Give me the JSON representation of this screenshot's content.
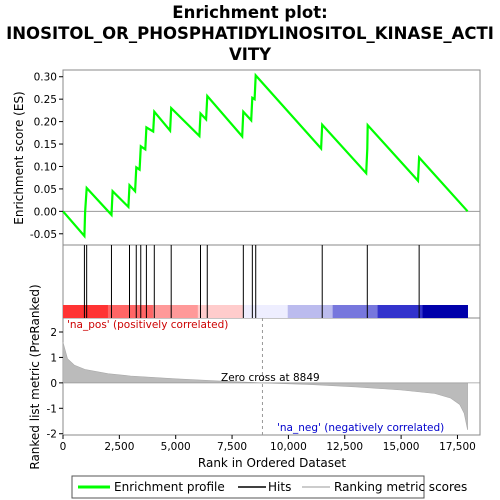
{
  "chart_data": {
    "type": "line",
    "title_lines": [
      "Enrichment plot:",
      "INOSITOL_OR_PHOSPHATIDYLINOSITOL_KINASE_ACTI",
      "VITY"
    ],
    "top_panel": {
      "ylabel": "Enrichment score (ES)",
      "ylim": [
        -0.075,
        0.315
      ],
      "yticks": [
        -0.05,
        0.0,
        0.05,
        0.1,
        0.15,
        0.2,
        0.25,
        0.3
      ],
      "ytick_labels": [
        "-0.05",
        "0.00",
        "0.05",
        "0.10",
        "0.15",
        "0.20",
        "0.25",
        "0.30"
      ],
      "line_color": "#00ff00"
    },
    "series": [
      {
        "name": "Enrichment profile",
        "x": [
          0,
          950,
          980,
          1050,
          2150,
          2200,
          2900,
          2950,
          3200,
          3250,
          3400,
          3450,
          3650,
          3700,
          4000,
          4050,
          4750,
          4800,
          6050,
          6100,
          6350,
          6400,
          7950,
          8000,
          8350,
          8400,
          8500,
          8550,
          11450,
          11500,
          13450,
          13500,
          13520,
          15750,
          15800,
          17950
        ],
        "y": [
          0.0,
          -0.055,
          -0.002,
          0.052,
          -0.008,
          0.045,
          0.01,
          0.058,
          0.045,
          0.098,
          0.093,
          0.145,
          0.138,
          0.187,
          0.178,
          0.222,
          0.18,
          0.23,
          0.168,
          0.218,
          0.205,
          0.257,
          0.167,
          0.222,
          0.203,
          0.253,
          0.25,
          0.303,
          0.14,
          0.193,
          0.085,
          0.14,
          0.192,
          0.068,
          0.12,
          0.0
        ]
      }
    ],
    "hits": [
      950,
      1050,
      2150,
      2950,
      3250,
      3450,
      3700,
      4050,
      4800,
      6100,
      6400,
      8000,
      8400,
      8550,
      11500,
      13500,
      15800
    ],
    "hits_label": "Hits",
    "heatmap_colors": [
      "#ff3333",
      "#ff6666",
      "#ff9999",
      "#ffcccc",
      "#eeeeff",
      "#bbbbee",
      "#7777dd",
      "#3333cc",
      "#0000aa"
    ],
    "bottom_panel": {
      "ylabel": "Ranked list metric (PreRanked)",
      "ylim": [
        -2.05,
        2.55
      ],
      "yticks": [
        -2,
        -1,
        0,
        1,
        2
      ],
      "ytick_labels": [
        "-2",
        "-1",
        "0",
        "1",
        "2"
      ],
      "metric_label": "Ranking metric scores",
      "metric_profile": {
        "rank": [
          0,
          200,
          500,
          1000,
          2000,
          3000,
          5000,
          7000,
          8849,
          11000,
          13000,
          15000,
          16500,
          17200,
          17600,
          17800,
          17950
        ],
        "value": [
          1.6,
          0.95,
          0.7,
          0.52,
          0.36,
          0.27,
          0.16,
          0.07,
          0.0,
          -0.07,
          -0.16,
          -0.28,
          -0.42,
          -0.6,
          -0.85,
          -1.2,
          -1.85
        ]
      },
      "zero_cross_label": "Zero cross at 8849",
      "zero_cross_rank": 8849,
      "pos_label": "'na_pos' (positively correlated)",
      "neg_label": "'na_neg' (negatively correlated)"
    },
    "xlabel": "Rank in Ordered Dataset",
    "xlim": [
      0,
      18500
    ],
    "xticks": [
      0,
      2500,
      5000,
      7500,
      10000,
      12500,
      15000,
      17500
    ],
    "xtick_labels": [
      "0",
      "2,500",
      "5,000",
      "7,500",
      "10,000",
      "12,500",
      "15,000",
      "17,500"
    ],
    "legend": [
      "Enrichment profile",
      "Hits",
      "Ranking metric scores"
    ]
  }
}
